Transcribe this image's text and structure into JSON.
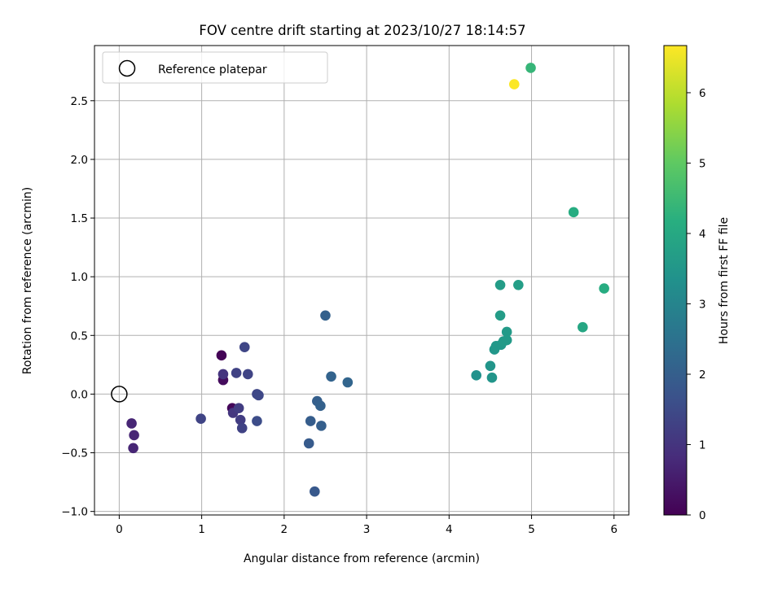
{
  "chart_data": {
    "type": "scatter",
    "title": "FOV centre drift starting at 2023/10/27 18:14:57",
    "xlabel": "Angular distance from reference (arcmin)",
    "ylabel": "Rotation from reference (arcmin)",
    "xlim": [
      -0.3,
      6.18
    ],
    "ylim": [
      -1.03,
      2.97
    ],
    "xticks": [
      0,
      1,
      2,
      3,
      4,
      5,
      6
    ],
    "yticks": [
      -1.0,
      -0.5,
      0.0,
      0.5,
      1.0,
      1.5,
      2.0,
      2.5
    ],
    "ytick_labels": [
      "−1.0",
      "−0.5",
      "0.0",
      "0.5",
      "1.0",
      "1.5",
      "2.0",
      "2.5"
    ],
    "grid": true,
    "colorbar": {
      "label": "Hours from first FF file",
      "colormap": "viridis",
      "range": [
        0,
        6.67
      ],
      "ticks": [
        0,
        1,
        2,
        3,
        4,
        5,
        6
      ]
    },
    "legend": {
      "location": "top-left",
      "entries": [
        {
          "label": "Reference platepar",
          "marker": "open-circle",
          "x": 0,
          "y": 0
        }
      ]
    },
    "points": [
      {
        "x": 1.24,
        "y": 0.33,
        "c": 0.05
      },
      {
        "x": 1.37,
        "y": -0.12,
        "c": 0.1
      },
      {
        "x": 1.26,
        "y": 0.12,
        "c": 0.2
      },
      {
        "x": 0.15,
        "y": -0.25,
        "c": 0.7
      },
      {
        "x": 0.18,
        "y": -0.35,
        "c": 0.7
      },
      {
        "x": 0.17,
        "y": -0.46,
        "c": 0.7
      },
      {
        "x": 1.26,
        "y": 0.17,
        "c": 1.0
      },
      {
        "x": 1.38,
        "y": -0.16,
        "c": 1.05
      },
      {
        "x": 1.45,
        "y": -0.12,
        "c": 1.2
      },
      {
        "x": 1.47,
        "y": -0.22,
        "c": 1.2
      },
      {
        "x": 1.49,
        "y": -0.29,
        "c": 1.3
      },
      {
        "x": 1.42,
        "y": 0.18,
        "c": 1.3
      },
      {
        "x": 1.56,
        "y": 0.17,
        "c": 1.35
      },
      {
        "x": 0.99,
        "y": -0.21,
        "c": 1.35
      },
      {
        "x": 1.52,
        "y": 0.4,
        "c": 1.4
      },
      {
        "x": 1.67,
        "y": 0.0,
        "c": 1.4
      },
      {
        "x": 1.69,
        "y": -0.01,
        "c": 1.45
      },
      {
        "x": 1.67,
        "y": -0.23,
        "c": 1.55
      },
      {
        "x": 2.37,
        "y": -0.83,
        "c": 1.85
      },
      {
        "x": 2.3,
        "y": -0.42,
        "c": 1.9
      },
      {
        "x": 2.32,
        "y": -0.23,
        "c": 1.95
      },
      {
        "x": 2.45,
        "y": -0.27,
        "c": 2.0
      },
      {
        "x": 2.4,
        "y": -0.06,
        "c": 2.0
      },
      {
        "x": 2.44,
        "y": -0.1,
        "c": 2.05
      },
      {
        "x": 2.5,
        "y": 0.67,
        "c": 2.05
      },
      {
        "x": 2.57,
        "y": 0.15,
        "c": 2.1
      },
      {
        "x": 2.77,
        "y": 0.1,
        "c": 2.15
      },
      {
        "x": 4.33,
        "y": 0.16,
        "c": 3.35
      },
      {
        "x": 4.52,
        "y": 0.14,
        "c": 3.45
      },
      {
        "x": 4.5,
        "y": 0.24,
        "c": 3.45
      },
      {
        "x": 4.55,
        "y": 0.38,
        "c": 3.5
      },
      {
        "x": 4.57,
        "y": 0.41,
        "c": 3.55
      },
      {
        "x": 4.63,
        "y": 0.42,
        "c": 3.55
      },
      {
        "x": 4.66,
        "y": 0.45,
        "c": 3.6
      },
      {
        "x": 4.7,
        "y": 0.46,
        "c": 3.6
      },
      {
        "x": 4.7,
        "y": 0.53,
        "c": 3.6
      },
      {
        "x": 4.62,
        "y": 0.67,
        "c": 3.65
      },
      {
        "x": 4.62,
        "y": 0.93,
        "c": 3.65
      },
      {
        "x": 4.84,
        "y": 0.93,
        "c": 3.7
      },
      {
        "x": 5.62,
        "y": 0.57,
        "c": 3.95
      },
      {
        "x": 5.88,
        "y": 0.9,
        "c": 4.1
      },
      {
        "x": 5.51,
        "y": 1.55,
        "c": 4.1
      },
      {
        "x": 4.99,
        "y": 2.78,
        "c": 4.4
      },
      {
        "x": 4.79,
        "y": 2.64,
        "c": 6.65
      }
    ]
  }
}
